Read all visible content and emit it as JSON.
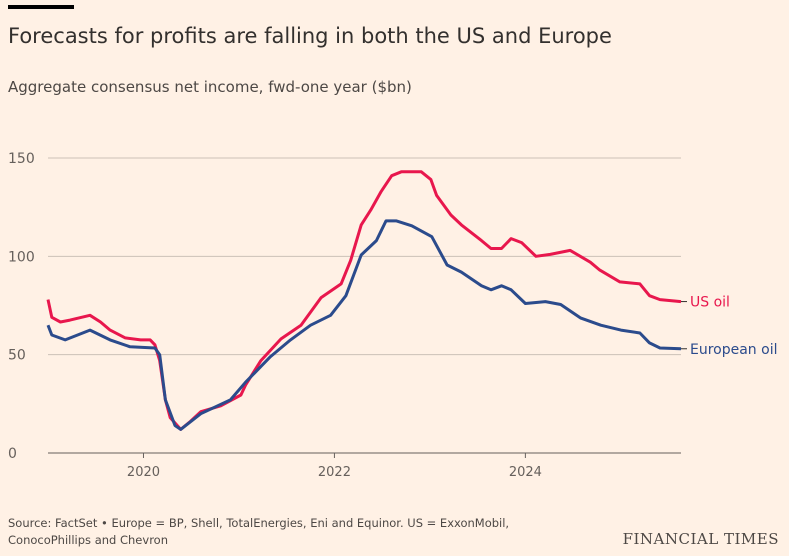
{
  "title": "Forecasts for profits are falling in both the US and Europe",
  "subtitle": "Aggregate consensus net income, fwd-one year ($bn)",
  "source": "Source: FactSet • Europe = BP, Shell, TotalEnergies, Eni and Equinor. US = ExxonMobil, ConocoPhillips and Chevron",
  "logo": "FINANCIAL TIMES",
  "chart_data": {
    "type": "line",
    "title": "Forecasts for profits are falling in both the US and Europe",
    "ylabel": "Aggregate consensus net income, fwd-one year ($bn)",
    "xlim": [
      2019.0,
      2025.63
    ],
    "ylim": [
      0,
      150
    ],
    "yticks": [
      0,
      50,
      100,
      150
    ],
    "xticks": [
      2020,
      2022,
      2024
    ],
    "grid": true,
    "series": [
      {
        "name": "US oil",
        "color": "#e8174d",
        "x": [
          2019.0,
          2019.04,
          2019.13,
          2019.23,
          2019.44,
          2019.55,
          2019.65,
          2019.81,
          2019.97,
          2020.07,
          2020.12,
          2020.17,
          2020.23,
          2020.28,
          2020.39,
          2020.49,
          2020.6,
          2020.81,
          2021.02,
          2021.07,
          2021.23,
          2021.44,
          2021.65,
          2021.86,
          2022.07,
          2022.17,
          2022.28,
          2022.38,
          2022.49,
          2022.6,
          2022.7,
          2022.91,
          2023.01,
          2023.07,
          2023.22,
          2023.33,
          2023.54,
          2023.64,
          2023.75,
          2023.85,
          2023.96,
          2024.11,
          2024.26,
          2024.47,
          2024.68,
          2024.78,
          2024.99,
          2025.2,
          2025.3,
          2025.41,
          2025.63
        ],
        "y": [
          78,
          69,
          66.6,
          67.6,
          70,
          66.6,
          62.5,
          58.5,
          57.5,
          57.5,
          55,
          47,
          27,
          18,
          12,
          16,
          21,
          24,
          29.5,
          34.6,
          47,
          58,
          65,
          79,
          86,
          98,
          116,
          123.5,
          133,
          141,
          143,
          143,
          139,
          131,
          121,
          116,
          108,
          104,
          104,
          109,
          107,
          100,
          101,
          103,
          97,
          93,
          87,
          86,
          80,
          78,
          77
        ]
      },
      {
        "name": "European oil",
        "color": "#2b4b8c",
        "x": [
          2019.0,
          2019.04,
          2019.18,
          2019.44,
          2019.65,
          2019.86,
          2020.12,
          2020.17,
          2020.23,
          2020.33,
          2020.39,
          2020.6,
          2020.91,
          2021.07,
          2021.33,
          2021.54,
          2021.75,
          2021.96,
          2022.12,
          2022.28,
          2022.44,
          2022.54,
          2022.65,
          2022.81,
          2023.02,
          2023.18,
          2023.33,
          2023.54,
          2023.64,
          2023.75,
          2023.85,
          2024.0,
          2024.21,
          2024.37,
          2024.58,
          2024.79,
          2025.0,
          2025.2,
          2025.3,
          2025.41,
          2025.63
        ],
        "y": [
          65,
          60,
          57.5,
          62.5,
          57.5,
          54,
          53.4,
          50,
          27,
          14,
          12,
          20,
          27,
          36,
          49,
          57.5,
          65,
          70,
          80,
          100.7,
          108,
          118,
          118,
          115.5,
          110,
          95.6,
          92,
          85,
          83,
          85,
          83,
          76,
          77,
          75.5,
          68.6,
          65,
          62.5,
          61,
          56,
          53.4,
          53
        ]
      }
    ]
  }
}
